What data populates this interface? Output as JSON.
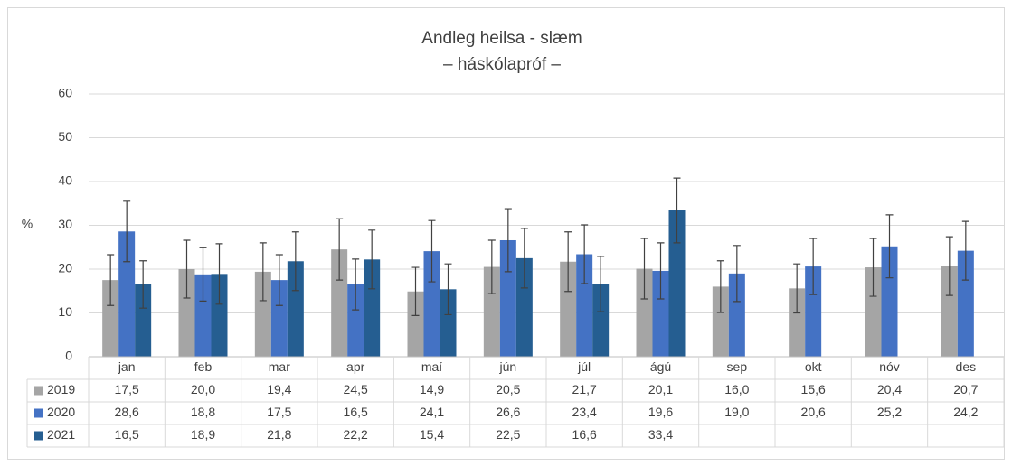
{
  "chart_data": {
    "type": "bar",
    "title": "Andleg heilsa - slæm",
    "subtitle": "– háskólapróf –",
    "y_label": "%",
    "categories": [
      "jan",
      "feb",
      "mar",
      "apr",
      "maí",
      "jún",
      "júl",
      "ágú",
      "sep",
      "okt",
      "nóv",
      "des"
    ],
    "series": [
      {
        "name": "2019",
        "color": "#a5a5a5",
        "values": [
          17.5,
          20.0,
          19.4,
          24.5,
          14.9,
          20.5,
          21.7,
          20.1,
          16.0,
          15.6,
          20.4,
          20.7
        ],
        "value_labels": [
          "17,5",
          "20,0",
          "19,4",
          "24,5",
          "14,9",
          "20,5",
          "21,7",
          "20,1",
          "16,0",
          "15,6",
          "20,4",
          "20,7"
        ],
        "errors": [
          5.8,
          6.6,
          6.6,
          7.0,
          5.5,
          6.1,
          6.8,
          6.9,
          5.9,
          5.6,
          6.6,
          6.7
        ]
      },
      {
        "name": "2020",
        "color": "#4472c4",
        "values": [
          28.6,
          18.8,
          17.5,
          16.5,
          24.1,
          26.6,
          23.4,
          19.6,
          19.0,
          20.6,
          25.2,
          24.2
        ],
        "value_labels": [
          "28,6",
          "18,8",
          "17,5",
          "16,5",
          "24,1",
          "26,6",
          "23,4",
          "19,6",
          "19,0",
          "20,6",
          "25,2",
          "24,2"
        ],
        "errors": [
          6.9,
          6.1,
          5.8,
          5.8,
          7.0,
          7.2,
          6.7,
          6.4,
          6.4,
          6.4,
          7.2,
          6.7
        ]
      },
      {
        "name": "2021",
        "color": "#255e91",
        "values": [
          16.5,
          18.9,
          21.8,
          22.2,
          15.4,
          22.5,
          16.6,
          33.4,
          null,
          null,
          null,
          null
        ],
        "value_labels": [
          "16,5",
          "18,9",
          "21,8",
          "22,2",
          "15,4",
          "22,5",
          "16,6",
          "33,4",
          null,
          null,
          null,
          null
        ],
        "errors": [
          5.4,
          6.9,
          6.7,
          6.7,
          5.8,
          6.8,
          6.3,
          7.4,
          null,
          null,
          null,
          null
        ]
      }
    ],
    "ylim": [
      0,
      60
    ],
    "yticks": [
      0,
      10,
      20,
      30,
      40,
      50,
      60
    ],
    "grid": true,
    "data_table": true
  }
}
